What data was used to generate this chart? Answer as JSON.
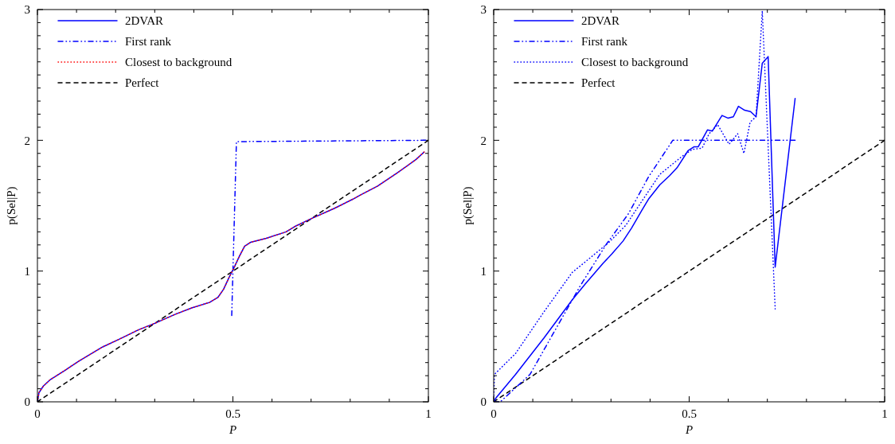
{
  "chart_data": [
    {
      "type": "line",
      "xlabel": "P",
      "ylabel": "p(Sel|P)",
      "xlim": [
        0,
        1
      ],
      "ylim": [
        0,
        3
      ],
      "legend": "top left",
      "xticks": [
        0,
        {
          "value": 0.1,
          "label": null
        },
        {
          "value": 0.2,
          "label": null
        },
        {
          "value": 0.3,
          "label": null
        },
        {
          "value": 0.4,
          "label": null
        },
        0.5,
        {
          "value": 0.6,
          "label": null
        },
        {
          "value": 0.7,
          "label": null
        },
        {
          "value": 0.8,
          "label": null
        },
        {
          "value": 0.9,
          "label": null
        },
        1
      ],
      "yticks": [
        0,
        {
          "value": 0.1,
          "label": null
        },
        {
          "value": 0.2,
          "label": null
        },
        {
          "value": 0.3,
          "label": null
        },
        {
          "value": 0.4,
          "label": null
        },
        {
          "value": 0.5,
          "label": null
        },
        {
          "value": 0.6,
          "label": null
        },
        {
          "value": 0.7,
          "label": null
        },
        {
          "value": 0.8,
          "label": null
        },
        {
          "value": 0.9,
          "label": null
        },
        1,
        {
          "value": 1.1,
          "label": null
        },
        {
          "value": 1.2,
          "label": null
        },
        {
          "value": 1.3,
          "label": null
        },
        {
          "value": 1.4,
          "label": null
        },
        {
          "value": 1.5,
          "label": null
        },
        {
          "value": 1.6,
          "label": null
        },
        {
          "value": 1.7,
          "label": null
        },
        {
          "value": 1.8,
          "label": null
        },
        {
          "value": 1.9,
          "label": null
        },
        2,
        {
          "value": 2.1,
          "label": null
        },
        {
          "value": 2.2,
          "label": null
        },
        {
          "value": 2.3,
          "label": null
        },
        {
          "value": 2.4,
          "label": null
        },
        {
          "value": 2.5,
          "label": null
        },
        {
          "value": 2.6,
          "label": null
        },
        {
          "value": 2.7,
          "label": null
        },
        {
          "value": 2.8,
          "label": null
        },
        {
          "value": 2.9,
          "label": null
        },
        3
      ],
      "series": [
        {
          "name": "2DVAR",
          "color": "#0000ff",
          "line_style": "solid",
          "x": [
            0,
            0.004,
            0.015,
            0.033,
            0.07,
            0.105,
            0.167,
            0.21,
            0.258,
            0.3,
            0.353,
            0.396,
            0.44,
            0.462,
            0.476,
            0.49,
            0.502,
            0.516,
            0.53,
            0.545,
            0.585,
            0.636,
            0.658,
            0.7,
            0.76,
            0.807,
            0.825,
            0.87,
            0.92,
            0.967,
            0.989
          ],
          "values": [
            0,
            0.07,
            0.12,
            0.17,
            0.24,
            0.31,
            0.42,
            0.48,
            0.55,
            0.6,
            0.67,
            0.72,
            0.76,
            0.8,
            0.86,
            0.95,
            1.02,
            1.11,
            1.19,
            1.22,
            1.25,
            1.3,
            1.34,
            1.4,
            1.48,
            1.55,
            1.58,
            1.65,
            1.75,
            1.85,
            1.91
          ]
        },
        {
          "name": "First rank",
          "color": "#0000ff",
          "line_style": "dashdot",
          "x": [
            0.497,
            0.509,
            0.993
          ],
          "values": [
            0.66,
            1.99,
            2.0
          ]
        },
        {
          "name": "Closest to background",
          "color": "#ff0000",
          "line_style": "dotted",
          "x": [
            0,
            0.004,
            0.015,
            0.033,
            0.07,
            0.105,
            0.167,
            0.21,
            0.258,
            0.3,
            0.353,
            0.396,
            0.44,
            0.462,
            0.476,
            0.49,
            0.502,
            0.516,
            0.53,
            0.545,
            0.585,
            0.636,
            0.658,
            0.7,
            0.76,
            0.807,
            0.825,
            0.87,
            0.92,
            0.967,
            0.989
          ],
          "values": [
            0,
            0.07,
            0.12,
            0.17,
            0.24,
            0.31,
            0.42,
            0.48,
            0.55,
            0.6,
            0.67,
            0.72,
            0.76,
            0.8,
            0.86,
            0.95,
            1.02,
            1.11,
            1.19,
            1.22,
            1.25,
            1.3,
            1.34,
            1.4,
            1.48,
            1.55,
            1.58,
            1.65,
            1.75,
            1.85,
            1.91
          ]
        },
        {
          "name": "Perfect",
          "color": "#000000",
          "line_style": "dashed",
          "x": [
            0,
            1
          ],
          "values": [
            0,
            2
          ]
        }
      ]
    },
    {
      "type": "line",
      "xlabel": "P",
      "ylabel": "p(Sel|P)",
      "xlim": [
        0,
        1
      ],
      "ylim": [
        0,
        3
      ],
      "legend": "top left",
      "xticks": [
        0,
        {
          "value": 0.1,
          "label": null
        },
        {
          "value": 0.2,
          "label": null
        },
        {
          "value": 0.3,
          "label": null
        },
        {
          "value": 0.4,
          "label": null
        },
        0.5,
        {
          "value": 0.6,
          "label": null
        },
        {
          "value": 0.7,
          "label": null
        },
        {
          "value": 0.8,
          "label": null
        },
        {
          "value": 0.9,
          "label": null
        },
        1
      ],
      "yticks": [
        0,
        {
          "value": 0.1,
          "label": null
        },
        {
          "value": 0.2,
          "label": null
        },
        {
          "value": 0.3,
          "label": null
        },
        {
          "value": 0.4,
          "label": null
        },
        {
          "value": 0.5,
          "label": null
        },
        {
          "value": 0.6,
          "label": null
        },
        {
          "value": 0.7,
          "label": null
        },
        {
          "value": 0.8,
          "label": null
        },
        {
          "value": 0.9,
          "label": null
        },
        1,
        {
          "value": 1.1,
          "label": null
        },
        {
          "value": 1.2,
          "label": null
        },
        {
          "value": 1.3,
          "label": null
        },
        {
          "value": 1.4,
          "label": null
        },
        {
          "value": 1.5,
          "label": null
        },
        {
          "value": 1.6,
          "label": null
        },
        {
          "value": 1.7,
          "label": null
        },
        {
          "value": 1.8,
          "label": null
        },
        {
          "value": 1.9,
          "label": null
        },
        2,
        {
          "value": 2.1,
          "label": null
        },
        {
          "value": 2.2,
          "label": null
        },
        {
          "value": 2.3,
          "label": null
        },
        {
          "value": 2.4,
          "label": null
        },
        {
          "value": 2.5,
          "label": null
        },
        {
          "value": 2.6,
          "label": null
        },
        {
          "value": 2.7,
          "label": null
        },
        {
          "value": 2.8,
          "label": null
        },
        {
          "value": 2.9,
          "label": null
        },
        3
      ],
      "series": [
        {
          "name": "2DVAR",
          "color": "#0000ff",
          "line_style": "solid",
          "x": [
            0,
            0.006,
            0.056,
            0.129,
            0.201,
            0.234,
            0.28,
            0.302,
            0.331,
            0.353,
            0.378,
            0.396,
            0.425,
            0.45,
            0.469,
            0.497,
            0.512,
            0.523,
            0.547,
            0.559,
            0.584,
            0.599,
            0.613,
            0.626,
            0.642,
            0.657,
            0.671,
            0.687,
            0.702,
            0.72,
            0.771
          ],
          "values": [
            0,
            0.03,
            0.21,
            0.49,
            0.78,
            0.9,
            1.06,
            1.13,
            1.23,
            1.33,
            1.46,
            1.55,
            1.66,
            1.73,
            1.79,
            1.92,
            1.95,
            1.95,
            2.08,
            2.07,
            2.19,
            2.17,
            2.18,
            2.26,
            2.23,
            2.22,
            2.18,
            2.59,
            2.64,
            1.03,
            2.32
          ]
        },
        {
          "name": "First rank",
          "color": "#0000ff",
          "line_style": "dashdot",
          "x": [
            0,
            0.017,
            0.093,
            0.222,
            0.287,
            0.345,
            0.396,
            0.447,
            0.458,
            0.771
          ],
          "values": [
            0,
            0,
            0.21,
            0.89,
            1.2,
            1.44,
            1.72,
            1.95,
            2.0,
            2.0
          ]
        },
        {
          "name": "Closest to background",
          "color": "#0000ff",
          "line_style": "dotted",
          "x": [
            0,
            0.002,
            0.056,
            0.129,
            0.201,
            0.23,
            0.295,
            0.338,
            0.378,
            0.425,
            0.483,
            0.508,
            0.533,
            0.551,
            0.573,
            0.602,
            0.624,
            0.64,
            0.656,
            0.671,
            0.687,
            0.72
          ],
          "values": [
            0,
            0.21,
            0.37,
            0.69,
            0.99,
            1.06,
            1.22,
            1.35,
            1.53,
            1.74,
            1.88,
            1.93,
            1.94,
            2.05,
            2.12,
            1.97,
            2.05,
            1.9,
            2.14,
            2.18,
            2.99,
            0.71
          ]
        },
        {
          "name": "Perfect",
          "color": "#000000",
          "line_style": "dashed",
          "x": [
            0,
            1
          ],
          "values": [
            0,
            2
          ]
        }
      ]
    }
  ]
}
